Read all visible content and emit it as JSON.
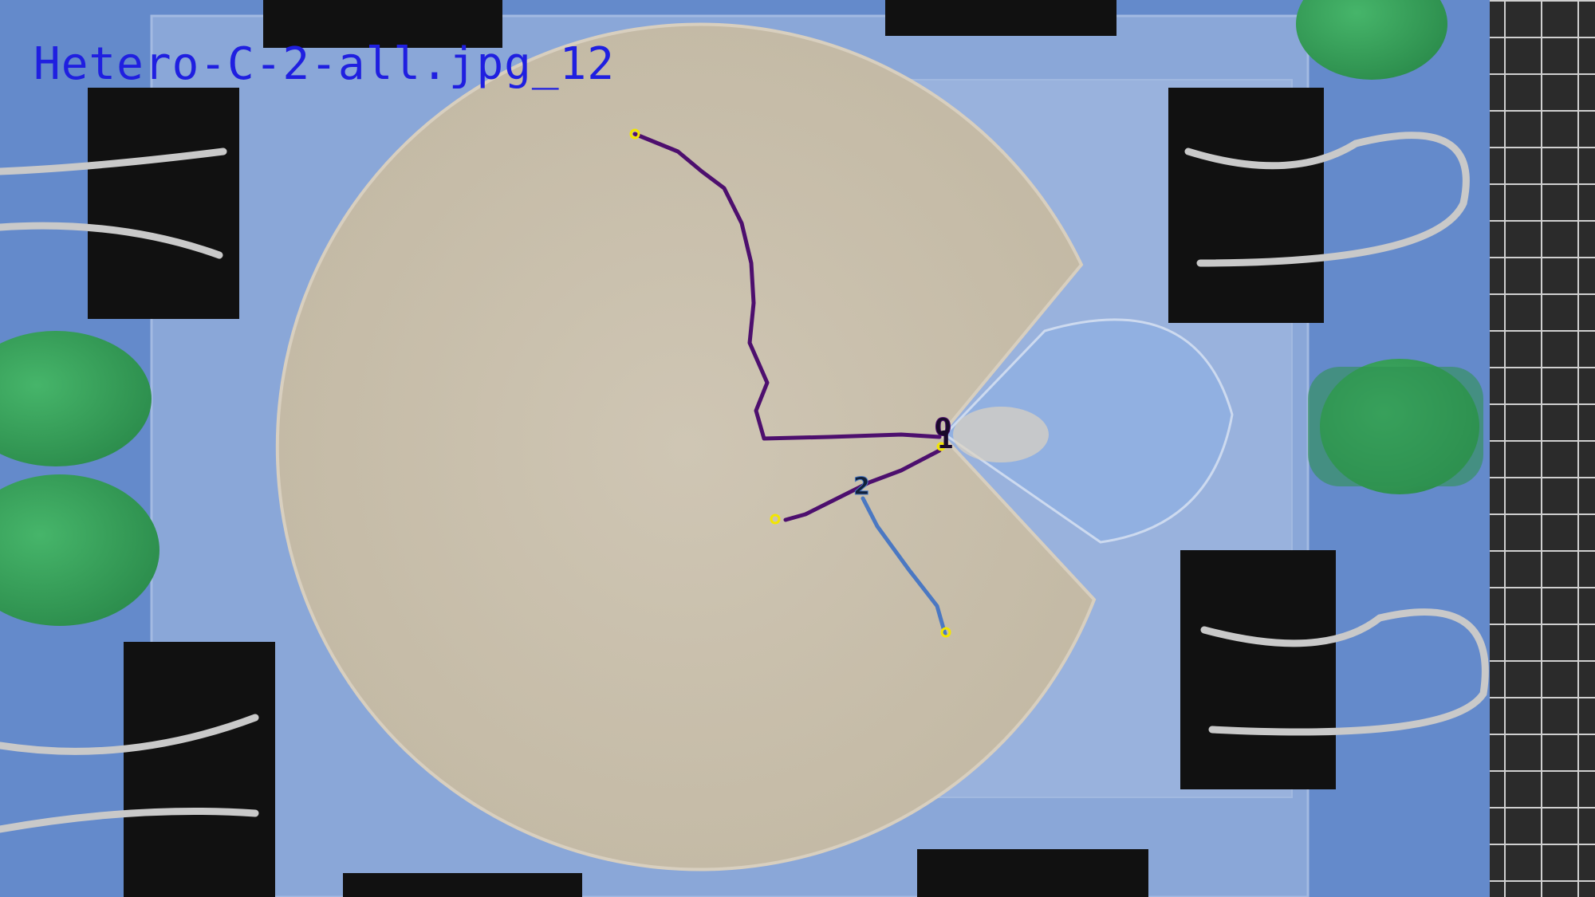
{
  "image": {
    "filename_label": "Hetero-C-2-all.jpg_12",
    "label_color": "#1f1fe0"
  },
  "annotations": {
    "node_labels": [
      "0",
      "1",
      "2"
    ],
    "path_colors": {
      "primary": "#4d0f6e",
      "secondary": "#4b78c2",
      "endpoint": "#f2e600"
    }
  }
}
